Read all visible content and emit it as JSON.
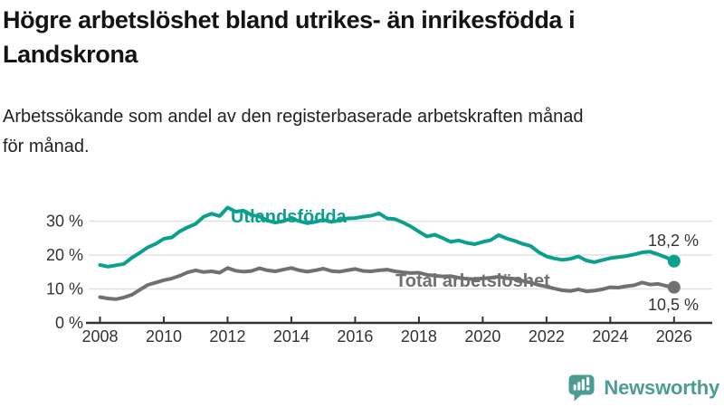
{
  "header": {
    "title_line1": "Högre arbetslöshet bland utrikes- än inrikesfödda i",
    "title_line2": "Landskrona",
    "subtitle_line1": "Arbetssökande som andel av den registerbaserade arbetskraften månad",
    "subtitle_line2": "för månad."
  },
  "footer": {
    "brand": "Newsworthy",
    "logo_icon": "bar-chart-speech-bubble-icon"
  },
  "colors": {
    "series_foreign_born": "#0b9f8e",
    "series_total": "#707070",
    "axis_text": "#333333",
    "gridline": "#e0e0e0",
    "brand_teal": "#4d9c92"
  },
  "chart_data": {
    "type": "line",
    "title": "Högre arbetslöshet bland utrikes- än inrikesfödda i Landskrona",
    "subtitle": "Arbetssökande som andel av den registerbaserade arbetskraften månad för månad.",
    "xlabel": "",
    "ylabel": "",
    "x_start": 2008.0,
    "x_step": 0.25,
    "xlim": [
      2007.6,
      2027.2
    ],
    "ylim": [
      0,
      35
    ],
    "grid": "horizontal",
    "x_tick_labels": [
      "2008",
      "2010",
      "2012",
      "2014",
      "2016",
      "2018",
      "2020",
      "2022",
      "2024",
      "2026"
    ],
    "y_ticks": [
      0,
      10,
      20,
      30
    ],
    "y_tick_labels": [
      "0 %",
      "10 %",
      "20 %",
      "30 %"
    ],
    "legend_position": "inline-labels",
    "series": [
      {
        "name": "Utlandsfödda",
        "color": "#0b9f8e",
        "end_label": "18,2 %",
        "end_value": 18.2,
        "values": [
          17.1,
          16.6,
          17.0,
          17.4,
          19.2,
          20.7,
          22.3,
          23.3,
          24.8,
          25.2,
          27.0,
          28.2,
          29.2,
          31.3,
          32.2,
          31.5,
          34.0,
          32.8,
          33.1,
          31.8,
          31.4,
          30.2,
          29.6,
          30.0,
          30.8,
          30.0,
          29.4,
          29.8,
          30.4,
          29.8,
          30.2,
          30.8,
          30.9,
          31.3,
          31.6,
          32.3,
          30.8,
          30.6,
          29.6,
          28.4,
          26.9,
          25.5,
          26.0,
          25.0,
          23.9,
          24.3,
          23.6,
          23.2,
          23.9,
          24.4,
          25.9,
          24.9,
          24.2,
          23.3,
          22.7,
          20.9,
          19.6,
          19.0,
          18.6,
          18.9,
          19.6,
          18.4,
          17.9,
          18.5,
          19.1,
          19.4,
          19.7,
          20.2,
          20.8,
          21.0,
          20.2,
          19.3,
          18.2
        ]
      },
      {
        "name": "Total arbetslöshet",
        "color": "#707070",
        "end_label": "10,5 %",
        "end_value": 10.5,
        "values": [
          7.6,
          7.2,
          7.0,
          7.5,
          8.3,
          9.8,
          11.2,
          11.9,
          12.6,
          13.1,
          13.9,
          14.9,
          15.5,
          15.0,
          15.2,
          14.8,
          16.2,
          15.4,
          15.1,
          15.3,
          16.1,
          15.5,
          15.2,
          15.7,
          16.2,
          15.5,
          15.1,
          15.5,
          16.0,
          15.3,
          15.1,
          15.5,
          15.9,
          15.3,
          15.2,
          15.5,
          15.7,
          15.2,
          14.9,
          14.7,
          14.8,
          14.2,
          13.9,
          13.7,
          13.8,
          13.3,
          13.0,
          12.9,
          13.1,
          13.3,
          13.6,
          13.2,
          13.0,
          12.4,
          11.9,
          11.2,
          10.7,
          10.1,
          9.6,
          9.4,
          9.9,
          9.3,
          9.5,
          9.9,
          10.5,
          10.4,
          10.8,
          11.1,
          11.9,
          11.3,
          11.5,
          10.9,
          10.5
        ]
      }
    ]
  }
}
